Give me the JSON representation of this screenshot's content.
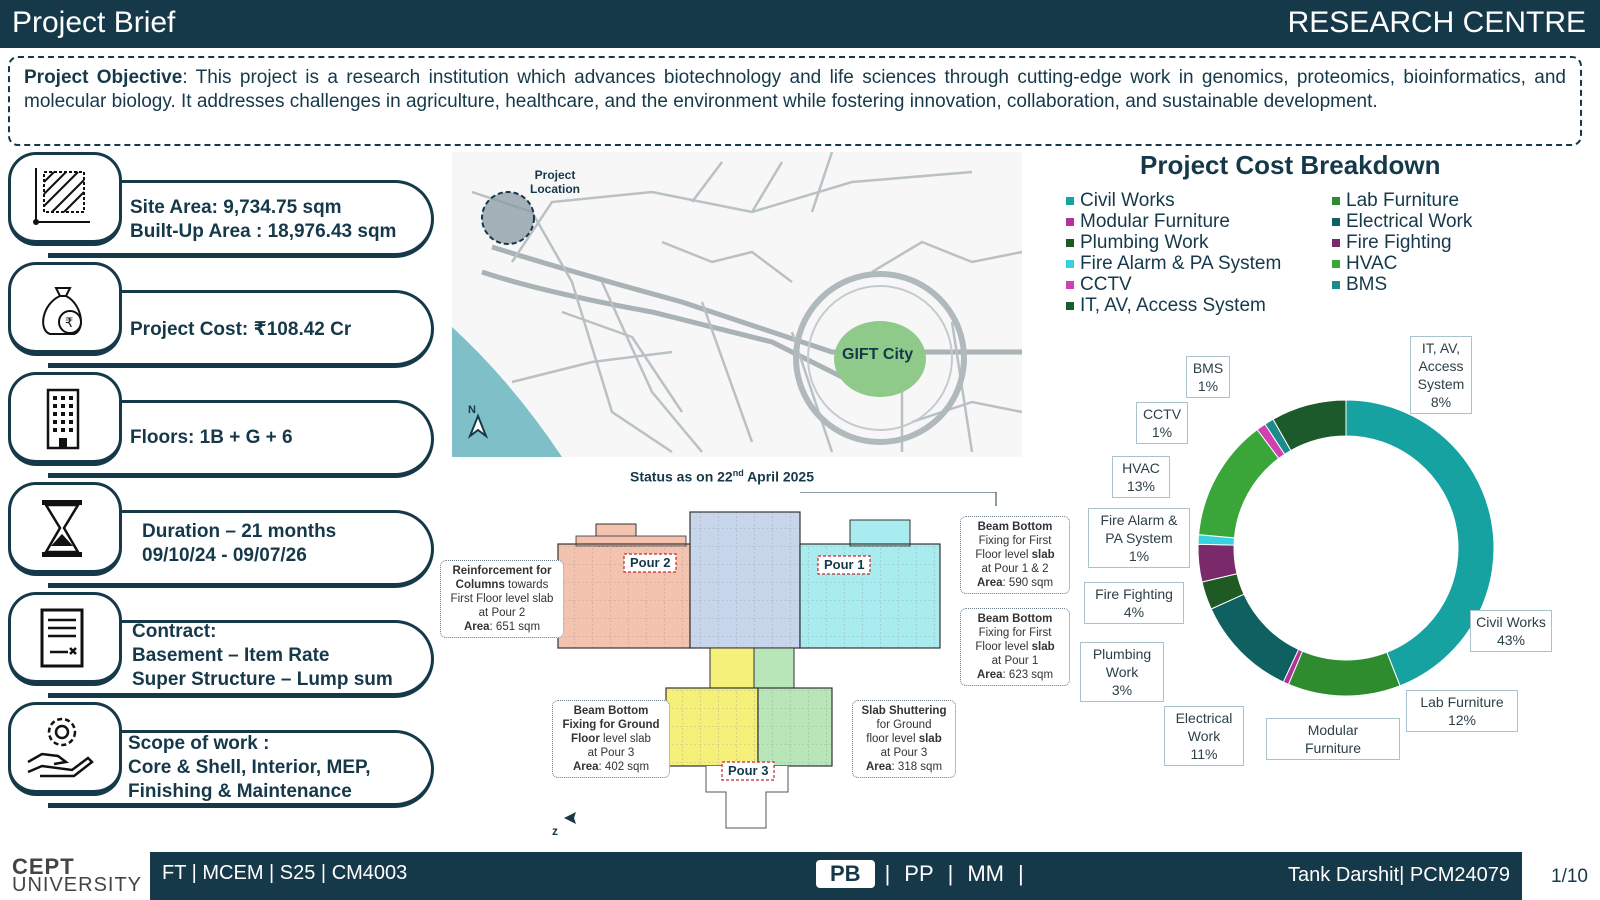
{
  "header": {
    "title": "Project Brief",
    "right_title": "RESEARCH CENTRE"
  },
  "objective": {
    "label": "Project Objective",
    "text": ": This project is a research institution which advances biotechnology and life sciences through cutting-edge work in genomics, proteomics, bioinformatics, and molecular biology. It addresses challenges in agriculture, healthcare, and the environment while fostering innovation, collaboration, and sustainable development."
  },
  "cards": {
    "site": {
      "line1": "Site Area: 9,734.75 sqm",
      "line2": "Built-Up Area : 18,976.43 sqm",
      "icon": "site-area-icon"
    },
    "cost": {
      "line1": "Project Cost: ₹108.42 Cr",
      "icon": "money-bag-icon"
    },
    "floors": {
      "line1": "Floors: 1B + G + 6",
      "icon": "building-icon"
    },
    "duration": {
      "line1": "Duration – 21 months",
      "line2": "09/10/24 - 09/07/26",
      "icon": "hourglass-icon"
    },
    "contract": {
      "line1": "Contract:",
      "line2": "Basement – Item Rate",
      "line3": "Super Structure – Lump sum",
      "icon": "contract-document-icon"
    },
    "scope": {
      "line1": "Scope of work :",
      "line2": "Core & Shell, Interior, MEP,",
      "line3": "Finishing & Maintenance",
      "icon": "gear-hand-icon"
    }
  },
  "map": {
    "project_location": "Project",
    "project_location2": "Location",
    "city": "GIFT City",
    "north": "N"
  },
  "status": {
    "title_pre": "Status as on 22",
    "title_sup": "nd",
    "title_post": " April 2025"
  },
  "pours": {
    "p1": "Pour 1",
    "p2": "Pour 2",
    "p3": "Pour 3"
  },
  "notes": {
    "n1": {
      "a": "Reinforcement for",
      "b": "Columns",
      "c": " towards",
      "d": "First Floor level slab",
      "e": "at Pour 2",
      "f": "Area",
      "g": ": 651 sqm"
    },
    "n2": {
      "a": "Beam Bottom",
      "b": "Fixing for First",
      "c": "Floor level ",
      "d": "slab",
      "e": "at Pour 1 & 2",
      "f": "Area",
      "g": ": 590 sqm"
    },
    "n3": {
      "a": "Beam Bottom",
      "b": "Fixing for First",
      "c": "Floor level ",
      "d": "slab",
      "e": "at Pour 1",
      "f": "Area",
      "g": ": 623 sqm"
    },
    "n4": {
      "a": "Beam Bottom",
      "b": "Fixing for Ground",
      "c": "Floor",
      "d": " level slab",
      "e": "at Pour 3",
      "f": "Area",
      "g": ": 402 sqm"
    },
    "n5": {
      "a": "Slab Shuttering",
      "b": "for Ground",
      "c": "floor level ",
      "d": "slab",
      "e": "at Pour 3",
      "f": "Area",
      "g": ": 318 sqm"
    }
  },
  "cost_breakdown": {
    "title": "Project Cost Breakdown",
    "legend_col1": [
      "Civil Works",
      "Modular Furniture",
      "Plumbing Work",
      "Fire Alarm & PA System",
      "CCTV",
      "IT, AV, Access System"
    ],
    "legend_col2": [
      "Lab Furniture",
      "Electrical Work",
      "Fire Fighting",
      "HVAC",
      "BMS"
    ],
    "colors": {
      "Civil Works": "#17a2a2",
      "Lab Furniture": "#2e8b2e",
      "Modular Furniture": "#b0329a",
      "Electrical Work": "#0f6060",
      "Plumbing Work": "#1f5a24",
      "Fire Fighting": "#7a2a6a",
      "Fire Alarm & PA System": "#39d0e0",
      "HVAC": "#3aa63a",
      "CCTV": "#d040b0",
      "BMS": "#1a8c8c",
      "IT, AV, Access System": "#1d5a2b"
    }
  },
  "chart_data": {
    "type": "pie",
    "title": "Project Cost Breakdown",
    "categories": [
      "Civil Works",
      "Lab Furniture",
      "Modular Furniture",
      "Electrical Work",
      "Plumbing Work",
      "Fire Fighting",
      "Fire Alarm & PA System",
      "HVAC",
      "CCTV",
      "BMS",
      "IT, AV, Access System"
    ],
    "values": [
      43,
      12,
      0,
      11,
      3,
      4,
      1,
      13,
      1,
      1,
      8
    ],
    "data_labels": [
      "Civil Works\n43%",
      "Lab Furniture\n12%",
      "Modular\nFurniture",
      "Electrical\nWork\n11%",
      "Plumbing\nWork\n3%",
      "Fire Fighting\n4%",
      "Fire Alarm &\nPA System\n1%",
      "HVAC\n13%",
      "CCTV\n1%",
      "BMS\n1%",
      "IT, AV,\nAccess\nSystem\n8%"
    ],
    "legend_position": "top"
  },
  "footer": {
    "logo_line1": "CEPT",
    "logo_line2": "UNIVERSITY",
    "course": "FT | MCEM | S25 | CM4003",
    "tab_pb": "PB",
    "tab_pp": "PP",
    "tab_mm": "MM",
    "sep": "|",
    "author": "Tank Darshit| PCM24079",
    "page": "1/10"
  }
}
